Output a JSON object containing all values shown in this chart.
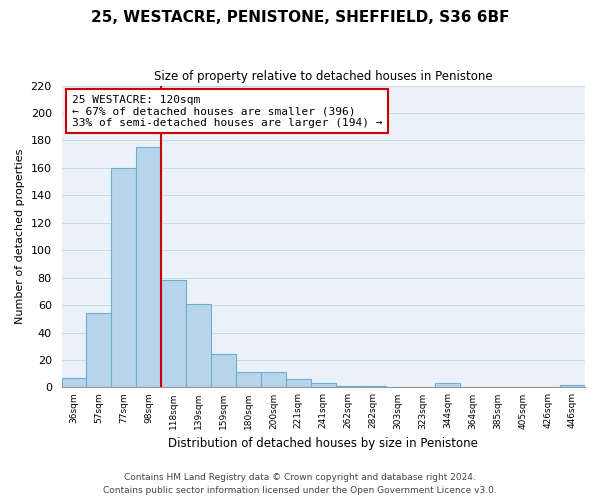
{
  "title": "25, WESTACRE, PENISTONE, SHEFFIELD, S36 6BF",
  "subtitle": "Size of property relative to detached houses in Penistone",
  "xlabel": "Distribution of detached houses by size in Penistone",
  "ylabel": "Number of detached properties",
  "bin_labels": [
    "36sqm",
    "57sqm",
    "77sqm",
    "98sqm",
    "118sqm",
    "139sqm",
    "159sqm",
    "180sqm",
    "200sqm",
    "221sqm",
    "241sqm",
    "262sqm",
    "282sqm",
    "303sqm",
    "323sqm",
    "344sqm",
    "364sqm",
    "385sqm",
    "405sqm",
    "426sqm",
    "446sqm"
  ],
  "bar_heights": [
    7,
    54,
    160,
    175,
    78,
    61,
    24,
    11,
    11,
    6,
    3,
    1,
    1,
    0,
    0,
    3,
    0,
    0,
    0,
    0,
    2
  ],
  "bar_color": "#b8d4eb",
  "bar_edge_color": "#6baed6",
  "property_line_x": 4,
  "property_line_color": "#cc0000",
  "ylim": [
    0,
    220
  ],
  "yticks": [
    0,
    20,
    40,
    60,
    80,
    100,
    120,
    140,
    160,
    180,
    200,
    220
  ],
  "annotation_title": "25 WESTACRE: 120sqm",
  "annotation_line1": "← 67% of detached houses are smaller (396)",
  "annotation_line2": "33% of semi-detached houses are larger (194) →",
  "annotation_box_color": "#ffffff",
  "annotation_border_color": "#cc0000",
  "footer_line1": "Contains HM Land Registry data © Crown copyright and database right 2024.",
  "footer_line2": "Contains public sector information licensed under the Open Government Licence v3.0.",
  "background_color": "#ffffff",
  "plot_bg_color": "#eaf1f8",
  "grid_color": "#c8d8e8"
}
